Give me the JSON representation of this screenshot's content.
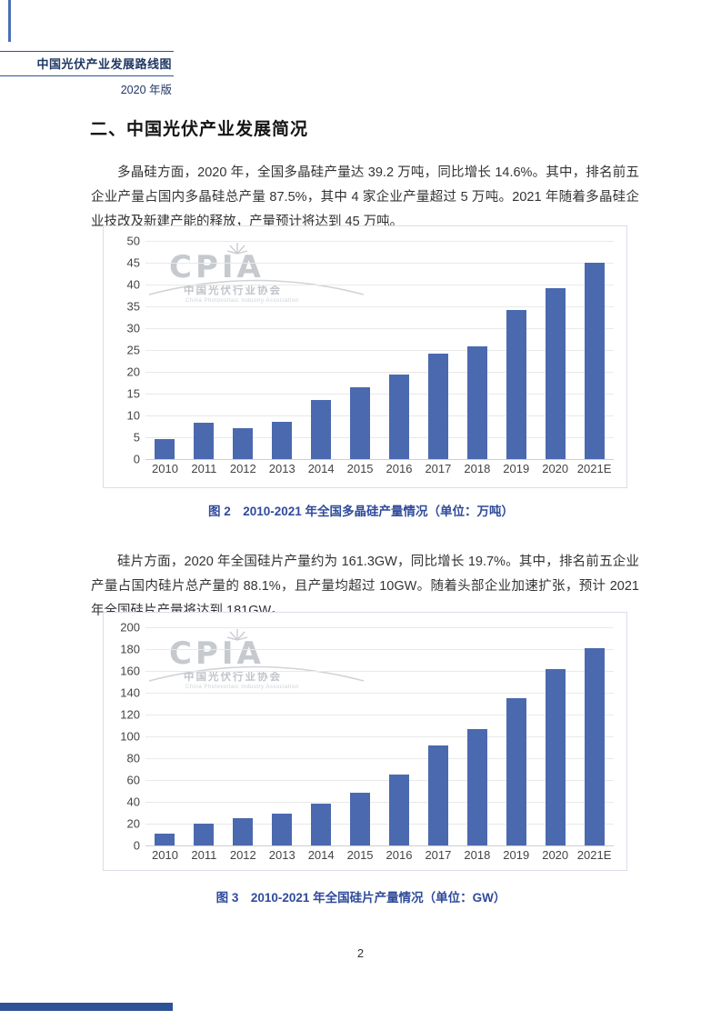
{
  "header": {
    "title": "中国光伏产业发展路线图",
    "edition": "2020 年版"
  },
  "section": {
    "heading": "二、中国光伏产业发展简况"
  },
  "paragraphs": {
    "polysilicon": "多晶硅方面，2020 年，全国多晶硅产量达 39.2 万吨，同比增长 14.6%。其中，排名前五企业产量占国内多晶硅总产量 87.5%，其中 4 家企业产量超过 5 万吨。2021 年随着多晶硅企业技改及新建产能的释放，产量预计将达到 45 万吨。",
    "wafer": "硅片方面，2020 年全国硅片产量约为 161.3GW，同比增长 19.7%。其中，排名前五企业产量占国内硅片总产量的 88.1%，且产量均超过 10GW。随着头部企业加速扩张，预计 2021 年全国硅片产量将达到 181GW。"
  },
  "watermark": {
    "acronym": "CPIA",
    "name_cn": "中国光伏行业协会",
    "name_en": "China Photovoltaic Industry Association"
  },
  "figures": {
    "fig2_caption": "图 2　2010-2021 年全国多晶硅产量情况（单位：万吨）",
    "fig3_caption": "图 3　2010-2021 年全国硅片产量情况（单位：GW）"
  },
  "page": {
    "number": "2"
  },
  "colors": {
    "bar": "#4B69AF",
    "accent_blue": "#2E5395",
    "caption_blue": "#2F4B9B",
    "header_navy": "#1F3864",
    "gridline": "#E9E9E9"
  },
  "chart_data": [
    {
      "type": "bar",
      "title": "图2 2010-2021年全国多晶硅产量情况",
      "unit": "万吨",
      "categories": [
        "2010",
        "2011",
        "2012",
        "2013",
        "2014",
        "2015",
        "2016",
        "2017",
        "2018",
        "2019",
        "2020",
        "2021E"
      ],
      "values": [
        4.5,
        8.4,
        7.1,
        8.5,
        13.6,
        16.5,
        19.4,
        24.2,
        25.9,
        34.2,
        39.2,
        45
      ],
      "xlabel": "",
      "ylabel": "",
      "ylim": [
        0,
        50
      ],
      "ytick_step": 5,
      "grid": true,
      "legend": false
    },
    {
      "type": "bar",
      "title": "图3 2010-2021年全国硅片产量情况",
      "unit": "GW",
      "categories": [
        "2010",
        "2011",
        "2012",
        "2013",
        "2014",
        "2015",
        "2016",
        "2017",
        "2018",
        "2019",
        "2020",
        "2021E"
      ],
      "values": [
        11,
        20,
        25,
        29.5,
        38,
        48,
        65,
        92,
        107,
        135,
        161.3,
        181
      ],
      "xlabel": "",
      "ylabel": "",
      "ylim": [
        0,
        200
      ],
      "ytick_step": 20,
      "grid": true,
      "legend": false
    }
  ]
}
